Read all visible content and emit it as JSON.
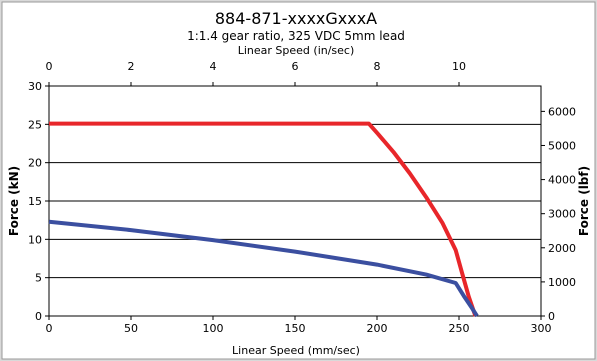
{
  "chart_data": {
    "type": "line",
    "title": "884-871-xxxxGxxxA",
    "subtitle": "1:1.4 gear ratio, 325 VDC 5mm lead",
    "xlabel": "Linear Speed (mm/sec)",
    "x2label": "Linear Speed (in/sec)",
    "ylabel": "Force (kN)",
    "y2label": "Force (lbf)",
    "xlim": [
      0,
      300
    ],
    "ylim": [
      0,
      30
    ],
    "x2lim": [
      0,
      12
    ],
    "y2lim": [
      0,
      6744
    ],
    "xticks": [
      0,
      50,
      100,
      150,
      200,
      250,
      300
    ],
    "yticks": [
      0,
      5,
      10,
      15,
      20,
      25,
      30
    ],
    "x2ticks": [
      0,
      2,
      4,
      6,
      8,
      10
    ],
    "y2ticks": [
      0,
      1000,
      2000,
      3000,
      4000,
      5000,
      6000
    ],
    "grid": "horizontal",
    "series": [
      {
        "color": "#e8262a",
        "x": [
          0,
          195,
          200,
          210,
          220,
          230,
          240,
          248,
          252,
          256,
          260
        ],
        "y": [
          25.1,
          25.1,
          23.9,
          21.4,
          18.6,
          15.5,
          12.1,
          8.6,
          5.5,
          2.5,
          0
        ]
      },
      {
        "color": "#3b4fa0",
        "x": [
          0,
          50,
          100,
          150,
          200,
          230,
          248,
          253,
          258,
          261
        ],
        "y": [
          12.3,
          11.2,
          9.9,
          8.4,
          6.7,
          5.4,
          4.3,
          2.6,
          1.0,
          0
        ]
      }
    ]
  }
}
